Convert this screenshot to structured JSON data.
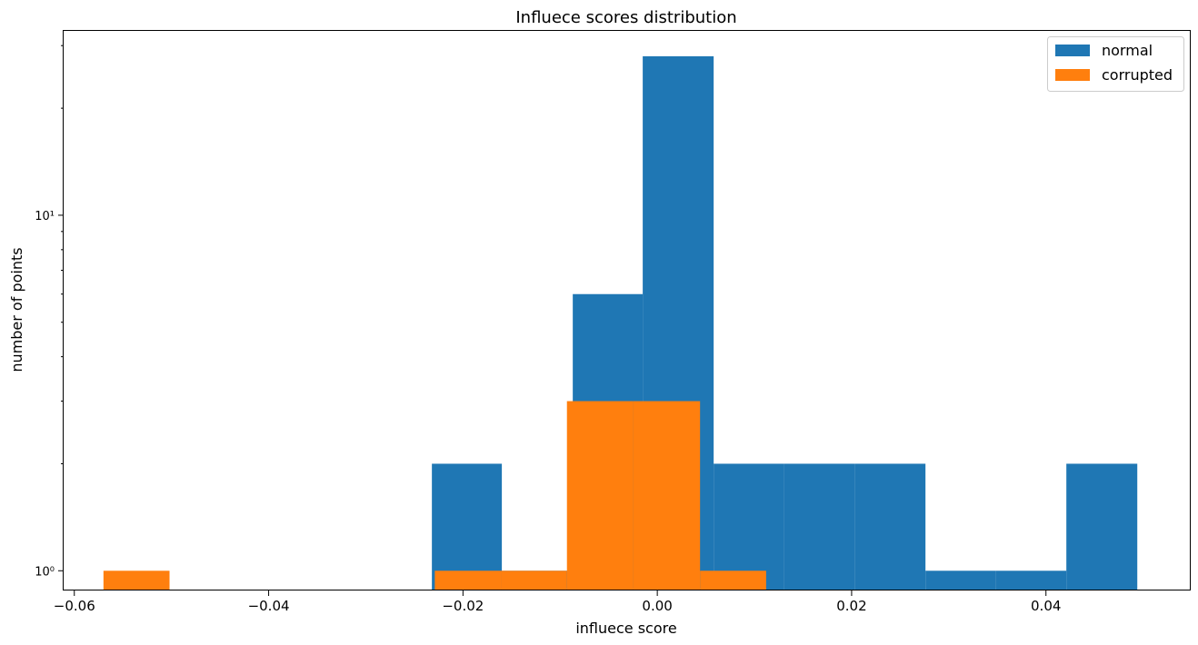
{
  "chart_data": {
    "type": "bar",
    "title": "Influece scores distribution",
    "xlabel": "influece score",
    "ylabel": "number of points",
    "yscale": "log",
    "xlim": [
      -0.0611,
      0.0549
    ],
    "ylim": [
      0.88,
      33
    ],
    "xticks": [
      -0.06,
      -0.04,
      -0.02,
      0.0,
      0.02,
      0.04
    ],
    "xtick_labels": [
      "−0.06",
      "−0.04",
      "−0.02",
      "0.00",
      "0.02",
      "0.04"
    ],
    "yticks": [
      1,
      10
    ],
    "ytick_labels": [
      "10⁰",
      "10¹"
    ],
    "legend_position": "top-right",
    "grid": false,
    "series": [
      {
        "name": "normal",
        "color": "#1f77b4",
        "bins": [
          {
            "x0": -0.0232,
            "x1": -0.016,
            "count": 2
          },
          {
            "x0": -0.016,
            "x1": -0.0087,
            "count": 1
          },
          {
            "x0": -0.0087,
            "x1": -0.0015,
            "count": 6
          },
          {
            "x0": -0.0015,
            "x1": 0.0058,
            "count": 28
          },
          {
            "x0": 0.0058,
            "x1": 0.013,
            "count": 2
          },
          {
            "x0": 0.013,
            "x1": 0.0203,
            "count": 2
          },
          {
            "x0": 0.0203,
            "x1": 0.0276,
            "count": 2
          },
          {
            "x0": 0.0276,
            "x1": 0.0348,
            "count": 1
          },
          {
            "x0": 0.0348,
            "x1": 0.0421,
            "count": 1
          },
          {
            "x0": 0.0421,
            "x1": 0.0494,
            "count": 2
          }
        ]
      },
      {
        "name": "corrupted",
        "color": "#ff7f0e",
        "bins": [
          {
            "x0": -0.057,
            "x1": -0.0502,
            "count": 1
          },
          {
            "x0": -0.0229,
            "x1": -0.0161,
            "count": 1
          },
          {
            "x0": -0.0161,
            "x1": -0.0093,
            "count": 1
          },
          {
            "x0": -0.0093,
            "x1": -0.0025,
            "count": 3
          },
          {
            "x0": -0.0025,
            "x1": 0.0044,
            "count": 3
          },
          {
            "x0": 0.0044,
            "x1": 0.0112,
            "count": 1
          }
        ]
      }
    ]
  }
}
